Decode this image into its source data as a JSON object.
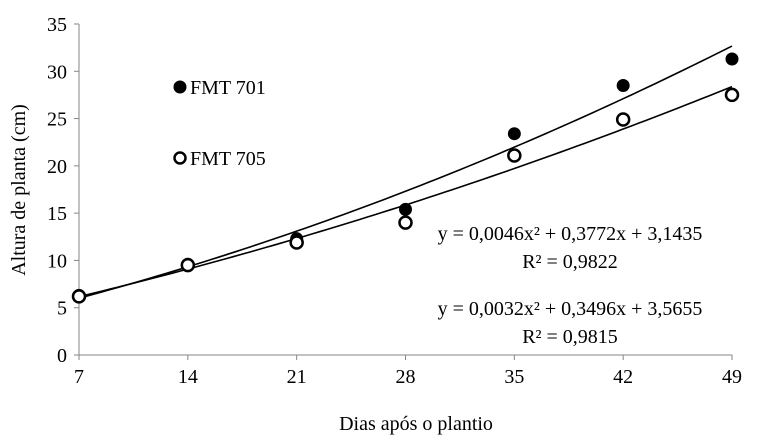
{
  "chart_data": {
    "type": "scatter",
    "xlabel": "Dias após o plantio",
    "ylabel": "Altura de planta (cm)",
    "xlim": [
      7,
      49
    ],
    "ylim": [
      0,
      35
    ],
    "x_ticks": [
      7,
      14,
      21,
      28,
      35,
      42,
      49
    ],
    "y_ticks": [
      0,
      5,
      10,
      15,
      20,
      25,
      30,
      35
    ],
    "grid": false,
    "legend_position": "left-middle",
    "series": [
      {
        "name": "FMT 701",
        "marker": "filled-circle",
        "color": "#000000",
        "x": [
          7,
          14,
          21,
          28,
          35,
          42,
          49
        ],
        "y": [
          6.3,
          9.6,
          12.3,
          15.4,
          23.4,
          28.5,
          31.3
        ],
        "trend": {
          "a": 0.0046,
          "b": 0.3772,
          "c": 3.1435
        }
      },
      {
        "name": "FMT 705",
        "marker": "open-circle",
        "color": "#000000",
        "x": [
          7,
          14,
          21,
          28,
          35,
          42,
          49
        ],
        "y": [
          6.2,
          9.5,
          11.9,
          14.0,
          21.1,
          24.9,
          27.5
        ],
        "trend": {
          "a": 0.0032,
          "b": 0.3496,
          "c": 3.5655
        }
      }
    ],
    "annotations": [
      {
        "equation": "y = 0,0046x² + 0,3772x + 3,1435",
        "r2": "R² = 0,9822"
      },
      {
        "equation": "y = 0,0032x² + 0,3496x + 3,5655",
        "r2": "R² = 0,9815"
      }
    ]
  }
}
